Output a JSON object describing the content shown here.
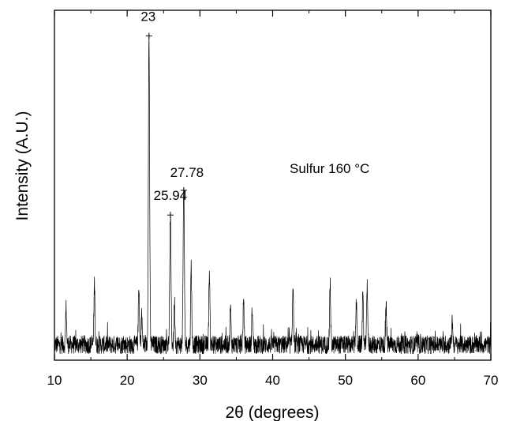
{
  "chart_data": {
    "type": "line",
    "xlabel": "2θ (degrees)",
    "ylabel": "Intensity (A.U.)",
    "xlim": [
      10,
      70
    ],
    "xticks": [
      10,
      20,
      30,
      40,
      50,
      60,
      70
    ],
    "y_ticks_labeled": false,
    "grid": false,
    "legend": "none",
    "series_color": "#000000",
    "annotation_text": "Sulfur 160 °C",
    "peak_labels": [
      {
        "x": 23.0,
        "label": "23"
      },
      {
        "x": 27.78,
        "label": "27.78"
      },
      {
        "x": 25.94,
        "label": "25.94"
      }
    ],
    "peaks": [
      {
        "x": 11.6,
        "height": 0.12
      },
      {
        "x": 15.5,
        "height": 0.2
      },
      {
        "x": 21.6,
        "height": 0.18
      },
      {
        "x": 22.0,
        "height": 0.1
      },
      {
        "x": 23.0,
        "height": 1.0
      },
      {
        "x": 25.94,
        "height": 0.42
      },
      {
        "x": 26.5,
        "height": 0.14
      },
      {
        "x": 27.78,
        "height": 0.5
      },
      {
        "x": 28.8,
        "height": 0.26
      },
      {
        "x": 31.3,
        "height": 0.24
      },
      {
        "x": 34.2,
        "height": 0.12
      },
      {
        "x": 36.0,
        "height": 0.14
      },
      {
        "x": 37.2,
        "height": 0.12
      },
      {
        "x": 42.8,
        "height": 0.2
      },
      {
        "x": 47.9,
        "height": 0.2
      },
      {
        "x": 51.5,
        "height": 0.14
      },
      {
        "x": 52.4,
        "height": 0.15
      },
      {
        "x": 53.0,
        "height": 0.2
      },
      {
        "x": 55.6,
        "height": 0.12
      },
      {
        "x": 64.7,
        "height": 0.08
      }
    ],
    "baseline_level": 0.05
  }
}
